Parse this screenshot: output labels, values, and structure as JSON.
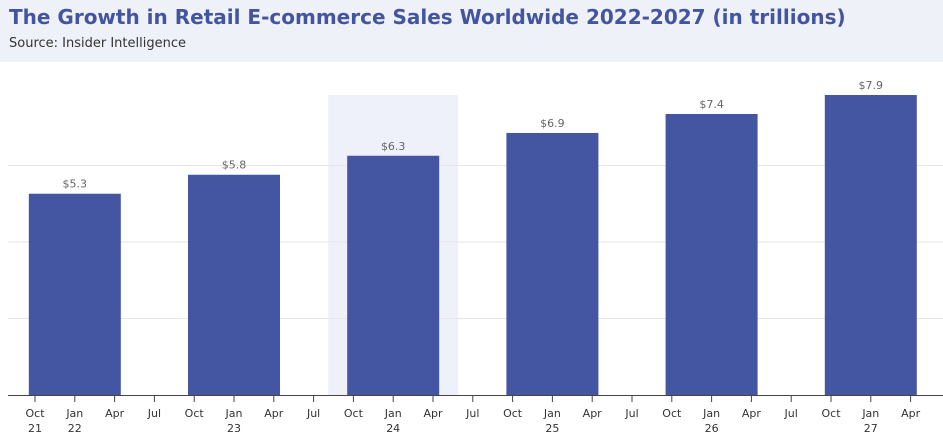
{
  "header": {
    "title": "The Growth in Retail E-commerce Sales Worldwide 2022-2027 (in trillions)",
    "subtitle": "Source: Insider Intelligence"
  },
  "colors": {
    "bar": "#4456a2",
    "highlight_band": "#eef0fa",
    "header_bg": "#eef1f7",
    "title": "#44559f",
    "grid": "#e6e6e6",
    "axis": "#444444",
    "value_label": "#666666",
    "tick_label": "#333333"
  },
  "chart_data": {
    "type": "bar",
    "title": "The Growth in Retail E-commerce Sales Worldwide 2022-2027 (in trillions)",
    "xlabel": "",
    "ylabel": "",
    "ylim": [
      0,
      7.9
    ],
    "grid": true,
    "categories": [
      "2022",
      "2023",
      "2024",
      "2025",
      "2026",
      "2027"
    ],
    "values": [
      5.3,
      5.8,
      6.3,
      6.9,
      7.4,
      7.9
    ],
    "value_labels": [
      "$5.3",
      "$5.8",
      "$6.3",
      "$6.9",
      "$7.4",
      "$7.9"
    ],
    "highlighted_category": "2024",
    "x_ticks": [
      {
        "label": "Oct",
        "year": "21"
      },
      {
        "label": "Jan",
        "year": "22"
      },
      {
        "label": "Apr",
        "year": ""
      },
      {
        "label": "Jul",
        "year": ""
      },
      {
        "label": "Oct",
        "year": ""
      },
      {
        "label": "Jan",
        "year": "23"
      },
      {
        "label": "Apr",
        "year": ""
      },
      {
        "label": "Jul",
        "year": ""
      },
      {
        "label": "Oct",
        "year": ""
      },
      {
        "label": "Jan",
        "year": "24"
      },
      {
        "label": "Apr",
        "year": ""
      },
      {
        "label": "Jul",
        "year": ""
      },
      {
        "label": "Oct",
        "year": ""
      },
      {
        "label": "Jan",
        "year": "25"
      },
      {
        "label": "Apr",
        "year": ""
      },
      {
        "label": "Jul",
        "year": ""
      },
      {
        "label": "Oct",
        "year": ""
      },
      {
        "label": "Jan",
        "year": "26"
      },
      {
        "label": "Apr",
        "year": ""
      },
      {
        "label": "Jul",
        "year": ""
      },
      {
        "label": "Oct",
        "year": ""
      },
      {
        "label": "Jan",
        "year": "27"
      },
      {
        "label": "Apr",
        "year": ""
      }
    ]
  }
}
